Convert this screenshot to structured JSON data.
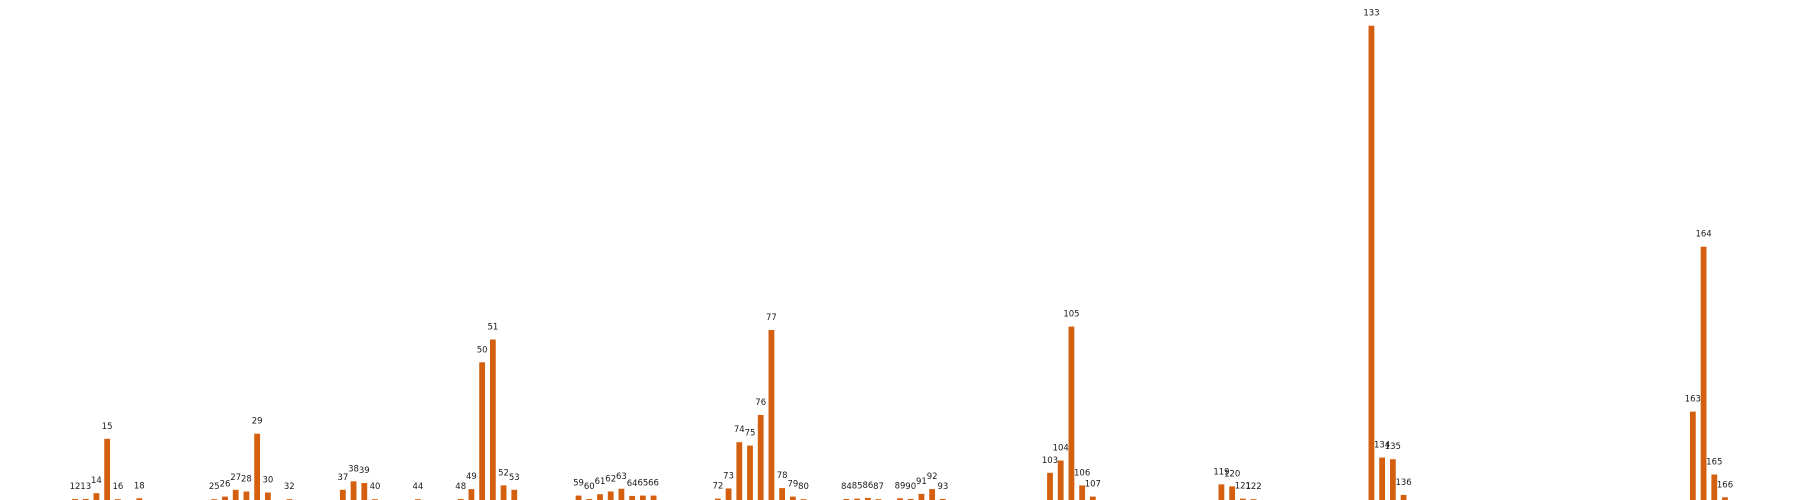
{
  "chart_data": {
    "type": "bar",
    "colors": {
      "bar": "#d35f0f",
      "label": "#1a1a1a",
      "background": "#ffffff"
    },
    "axes_visible": false,
    "grid": false,
    "legend": "none",
    "title": "",
    "xlabel": "",
    "ylabel": "",
    "xlim": [
      5,
      173
    ],
    "ylim": [
      0,
      140
    ],
    "points": [
      {
        "x": 12,
        "y": 0.3
      },
      {
        "x": 13,
        "y": 0.3
      },
      {
        "x": 14,
        "y": 2
      },
      {
        "x": 15,
        "y": 18
      },
      {
        "x": 16,
        "y": 0.2
      },
      {
        "x": 18,
        "y": 0.5
      },
      {
        "x": 25,
        "y": 0.2
      },
      {
        "x": 26,
        "y": 1
      },
      {
        "x": 27,
        "y": 3
      },
      {
        "x": 28,
        "y": 2.5
      },
      {
        "x": 29,
        "y": 19.5
      },
      {
        "x": 30,
        "y": 2.2
      },
      {
        "x": 32,
        "y": 0.2
      },
      {
        "x": 37,
        "y": 3
      },
      {
        "x": 38,
        "y": 5.5
      },
      {
        "x": 39,
        "y": 5
      },
      {
        "x": 40,
        "y": 0.2
      },
      {
        "x": 44,
        "y": 0.2
      },
      {
        "x": 48,
        "y": 0.3
      },
      {
        "x": 49,
        "y": 3.2
      },
      {
        "x": 50,
        "y": 40.5
      },
      {
        "x": 51,
        "y": 47.2
      },
      {
        "x": 52,
        "y": 4.3
      },
      {
        "x": 53,
        "y": 3
      },
      {
        "x": 59,
        "y": 1.3
      },
      {
        "x": 60,
        "y": 0.3
      },
      {
        "x": 61,
        "y": 1.7
      },
      {
        "x": 62,
        "y": 2.5
      },
      {
        "x": 63,
        "y": 3.3
      },
      {
        "x": 64,
        "y": 1.2
      },
      {
        "x": 65,
        "y": 1.3
      },
      {
        "x": 66,
        "y": 1.3
      },
      {
        "x": 72,
        "y": 0.4
      },
      {
        "x": 73,
        "y": 3.4
      },
      {
        "x": 74,
        "y": 17
      },
      {
        "x": 75,
        "y": 16
      },
      {
        "x": 76,
        "y": 25
      },
      {
        "x": 77,
        "y": 50
      },
      {
        "x": 78,
        "y": 3.5
      },
      {
        "x": 79,
        "y": 1
      },
      {
        "x": 80,
        "y": 0.2
      },
      {
        "x": 84,
        "y": 0.3
      },
      {
        "x": 85,
        "y": 0.4
      },
      {
        "x": 86,
        "y": 0.6
      },
      {
        "x": 87,
        "y": 0.2
      },
      {
        "x": 89,
        "y": 0.5
      },
      {
        "x": 90,
        "y": 0.3
      },
      {
        "x": 91,
        "y": 1.8
      },
      {
        "x": 92,
        "y": 3.2
      },
      {
        "x": 93,
        "y": 0.3
      },
      {
        "x": 103,
        "y": 8
      },
      {
        "x": 104,
        "y": 11.6
      },
      {
        "x": 105,
        "y": 51
      },
      {
        "x": 106,
        "y": 4.3
      },
      {
        "x": 107,
        "y": 1
      },
      {
        "x": 119,
        "y": 4.6
      },
      {
        "x": 120,
        "y": 4
      },
      {
        "x": 121,
        "y": 0.4
      },
      {
        "x": 122,
        "y": 0.2
      },
      {
        "x": 133,
        "y": 139.5
      },
      {
        "x": 134,
        "y": 12.5
      },
      {
        "x": 135,
        "y": 12
      },
      {
        "x": 136,
        "y": 1.5
      },
      {
        "x": 163,
        "y": 26
      },
      {
        "x": 164,
        "y": 74.5
      },
      {
        "x": 165,
        "y": 7.5
      },
      {
        "x": 166,
        "y": 0.8
      }
    ]
  }
}
